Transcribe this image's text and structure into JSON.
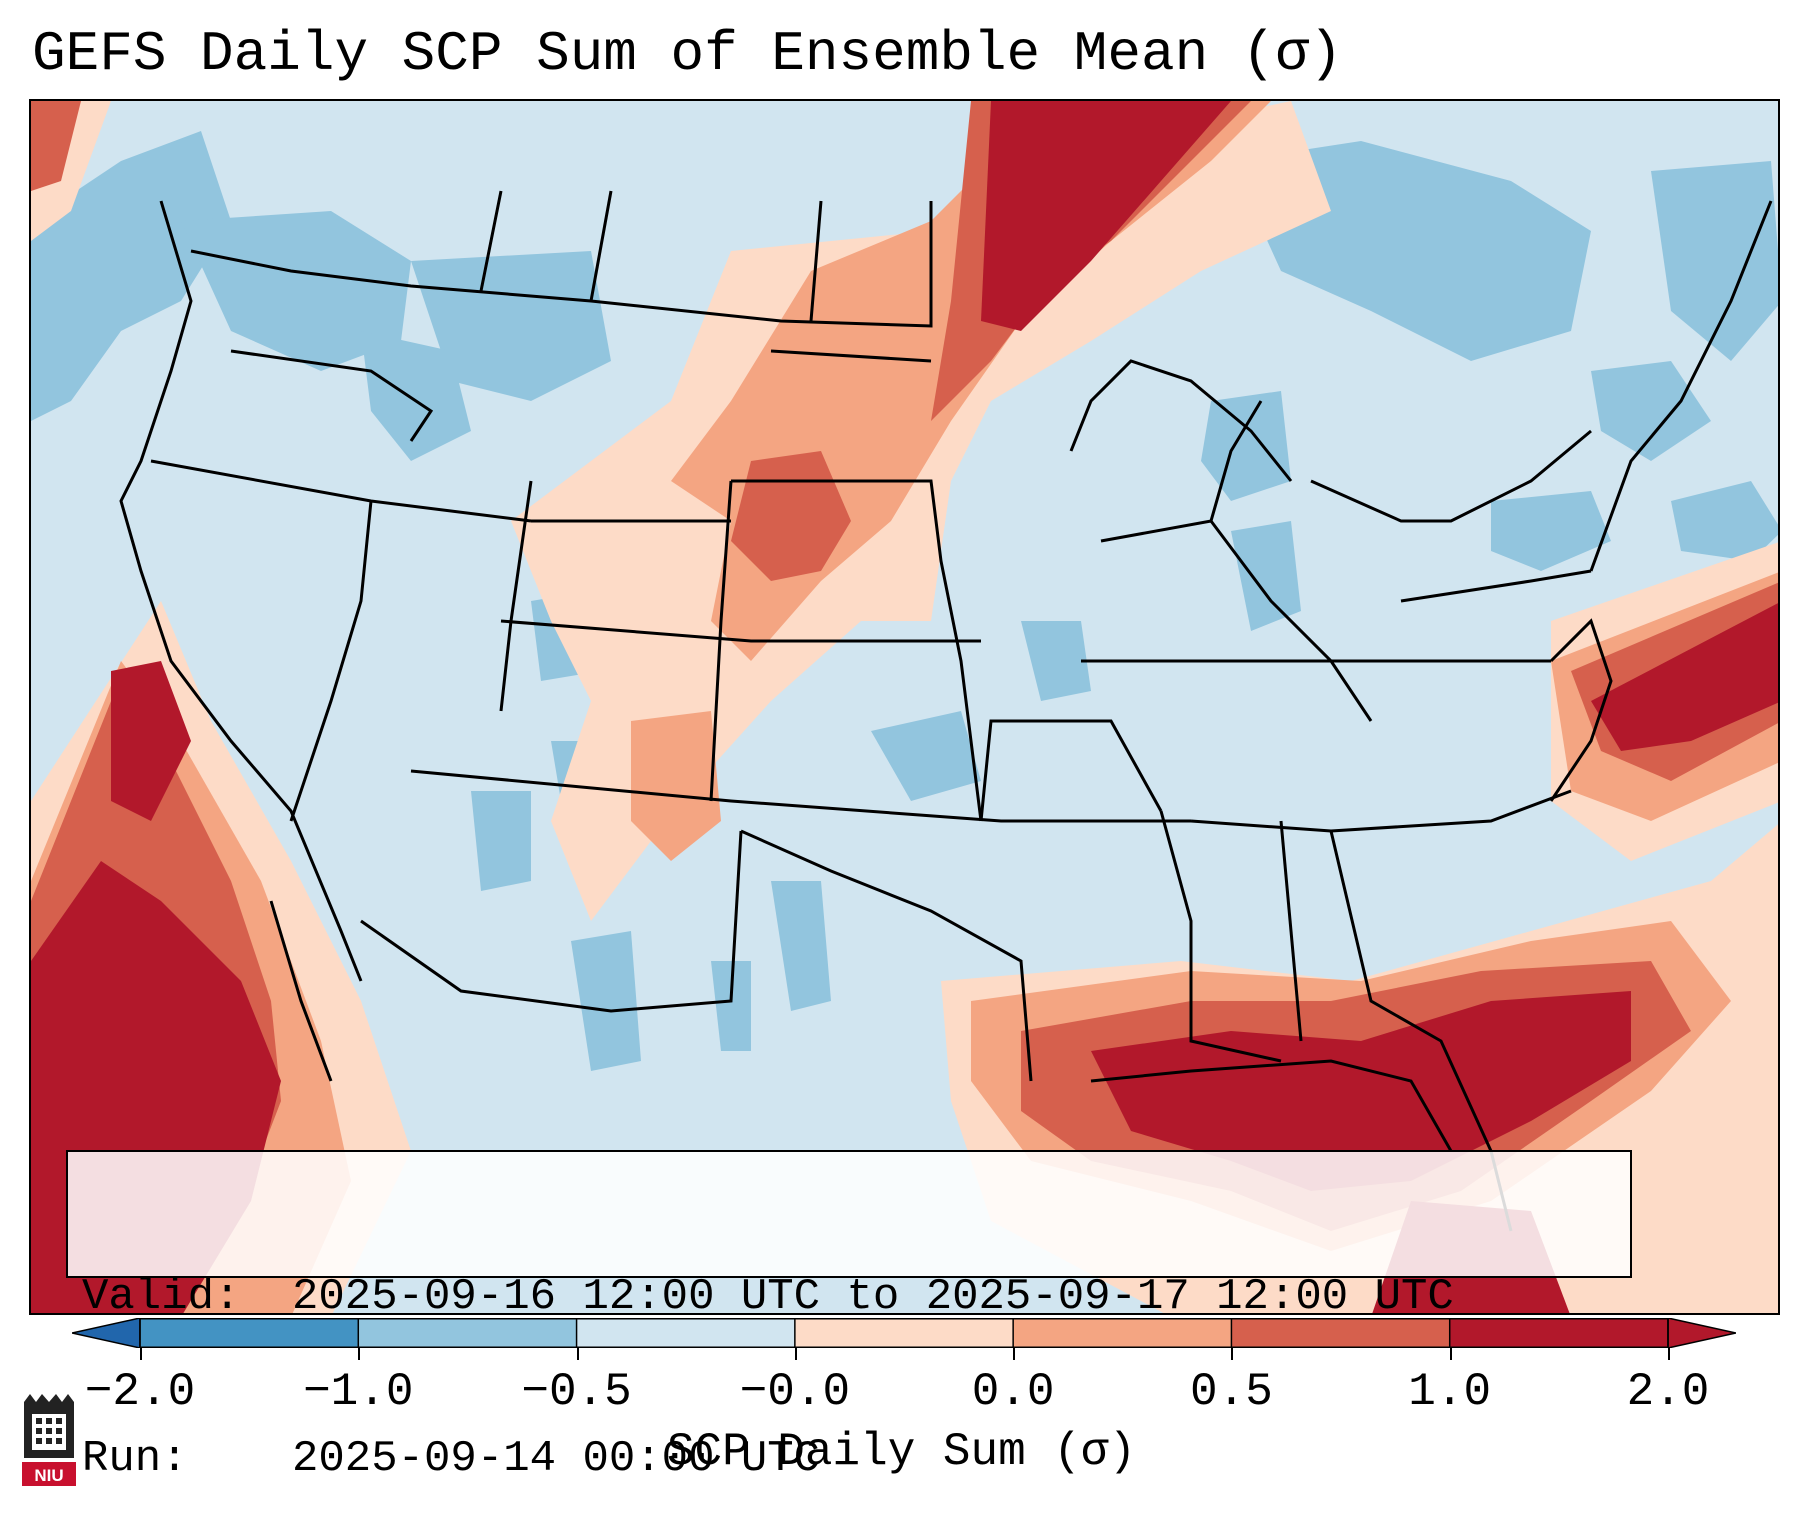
{
  "title": "GEFS Daily SCP Sum of Ensemble Mean (σ)",
  "info": {
    "valid_label": "Valid:",
    "valid_value": "2025-09-16 12:00 UTC to 2025-09-17 12:00 UTC",
    "run_label": "Run:",
    "run_value": "2025-09-14 00:00 UTC"
  },
  "colorbar": {
    "label": "SCP Daily Sum (σ)",
    "ticks": [
      "−2.0",
      "−1.0",
      "−0.5",
      "−0.0",
      "0.0",
      "0.5",
      "1.0",
      "2.0"
    ],
    "colors": [
      "#4393c3",
      "#92c5de",
      "#d1e5f0",
      "#fddbc7",
      "#f4a582",
      "#d6604d",
      "#b2182b"
    ],
    "under_color": "#2166ac",
    "over_color": "#b2182b"
  },
  "logo": {
    "text": "NIU",
    "icon": "niu-logo-icon"
  }
}
